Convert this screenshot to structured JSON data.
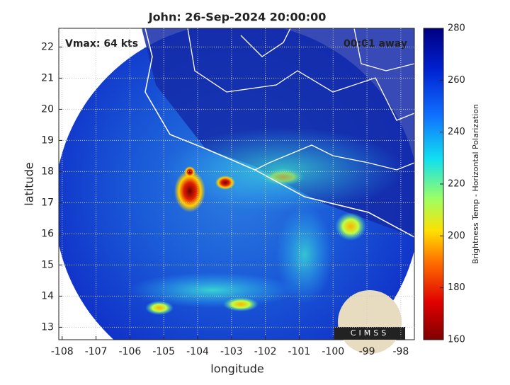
{
  "title": "John: 26-Sep-2024 20:00:00",
  "annotations": {
    "vmax": "Vmax: 64 kts",
    "time_away": "00:01 away"
  },
  "x_axis": {
    "label": "longitude",
    "lim": [
      -108.1,
      -97.6
    ],
    "ticks": [
      -108,
      -107,
      -106,
      -105,
      -104,
      -103,
      -102,
      -101,
      -100,
      -99,
      -98
    ]
  },
  "y_axis": {
    "label": "latitude",
    "lim": [
      12.6,
      22.6
    ],
    "ticks": [
      13,
      14,
      15,
      16,
      17,
      18,
      19,
      20,
      21,
      22
    ]
  },
  "colorbar": {
    "label": "Brightness Temp - Horizontal Polarization",
    "lim": [
      160,
      280
    ],
    "ticks": [
      160,
      180,
      200,
      220,
      240,
      260,
      280
    ]
  },
  "logo": {
    "text": "CIMSS"
  }
}
